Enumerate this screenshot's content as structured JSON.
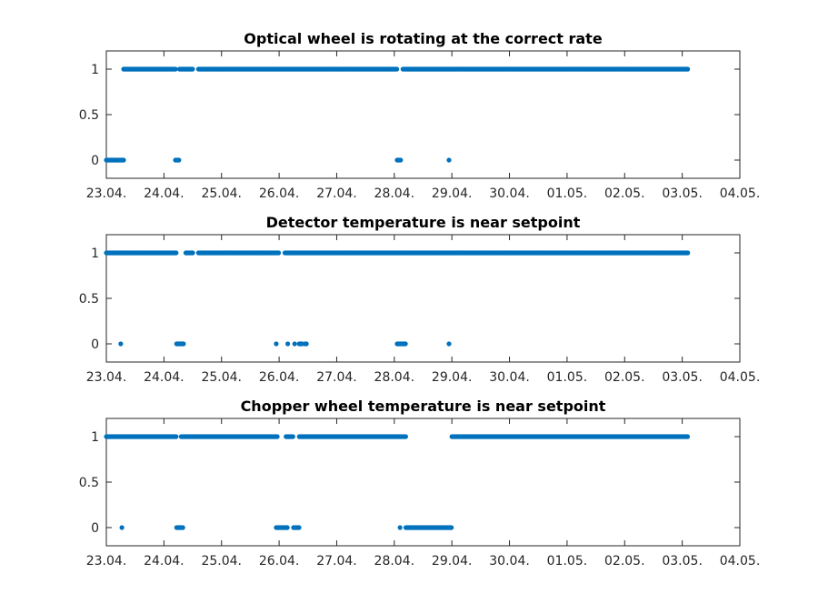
{
  "chart_data": [
    {
      "type": "scatter",
      "title": "Optical wheel is rotating at the correct rate",
      "xlabel": "",
      "ylabel": "",
      "x_ticks": [
        "23.04.",
        "24.04.",
        "25.04.",
        "26.04.",
        "27.04.",
        "28.04.",
        "29.04.",
        "30.04.",
        "01.05.",
        "02.05.",
        "03.05.",
        "04.05."
      ],
      "xlim": [
        0,
        11
      ],
      "y_ticks": [
        "0",
        "0.5",
        "1"
      ],
      "ylim": [
        -0.2,
        1.2
      ],
      "color": "#0072bd",
      "series": [
        {
          "y": 1,
          "ranges": [
            [
              0.3,
              1.2
            ],
            [
              1.27,
              1.5
            ],
            [
              1.6,
              5.05
            ],
            [
              5.15,
              10.1
            ]
          ]
        },
        {
          "y": 0,
          "ranges": [
            [
              0.0,
              0.3
            ],
            [
              1.2,
              1.27
            ],
            [
              5.05,
              5.12
            ],
            [
              5.95,
              5.95
            ]
          ]
        }
      ]
    },
    {
      "type": "scatter",
      "title": "Detector temperature is near setpoint",
      "xlabel": "",
      "ylabel": "",
      "x_ticks": [
        "23.04.",
        "24.04.",
        "25.04.",
        "26.04.",
        "27.04.",
        "28.04.",
        "29.04.",
        "30.04.",
        "01.05.",
        "02.05.",
        "03.05.",
        "04.05."
      ],
      "xlim": [
        0,
        11
      ],
      "y_ticks": [
        "0",
        "0.5",
        "1"
      ],
      "ylim": [
        -0.2,
        1.2
      ],
      "color": "#0072bd",
      "series": [
        {
          "y": 1,
          "ranges": [
            [
              0.0,
              1.22
            ],
            [
              1.38,
              1.5
            ],
            [
              1.6,
              3.0
            ],
            [
              3.1,
              10.1
            ]
          ]
        },
        {
          "y": 0,
          "ranges": [
            [
              0.25,
              0.25
            ],
            [
              1.22,
              1.35
            ],
            [
              2.95,
              2.95
            ],
            [
              3.15,
              3.15
            ],
            [
              3.27,
              3.27
            ],
            [
              3.35,
              3.4
            ],
            [
              3.45,
              3.48
            ],
            [
              5.05,
              5.2
            ],
            [
              5.95,
              5.95
            ]
          ]
        }
      ]
    },
    {
      "type": "scatter",
      "title": "Chopper wheel temperature is near setpoint",
      "xlabel": "",
      "ylabel": "",
      "x_ticks": [
        "23.04.",
        "24.04.",
        "25.04.",
        "26.04.",
        "27.04.",
        "28.04.",
        "29.04.",
        "30.04.",
        "01.05.",
        "02.05.",
        "03.05.",
        "04.05."
      ],
      "xlim": [
        0,
        11
      ],
      "y_ticks": [
        "0",
        "0.5",
        "1"
      ],
      "ylim": [
        -0.2,
        1.2
      ],
      "color": "#0072bd",
      "series": [
        {
          "y": 1,
          "ranges": [
            [
              0.0,
              1.22
            ],
            [
              1.3,
              2.97
            ],
            [
              3.12,
              3.25
            ],
            [
              3.35,
              5.2
            ],
            [
              6.0,
              10.1
            ]
          ]
        },
        {
          "y": 0,
          "ranges": [
            [
              0.27,
              0.27
            ],
            [
              1.22,
              1.33
            ],
            [
              2.95,
              3.15
            ],
            [
              3.25,
              3.35
            ],
            [
              5.1,
              5.1
            ],
            [
              5.2,
              6.0
            ]
          ]
        }
      ]
    }
  ]
}
